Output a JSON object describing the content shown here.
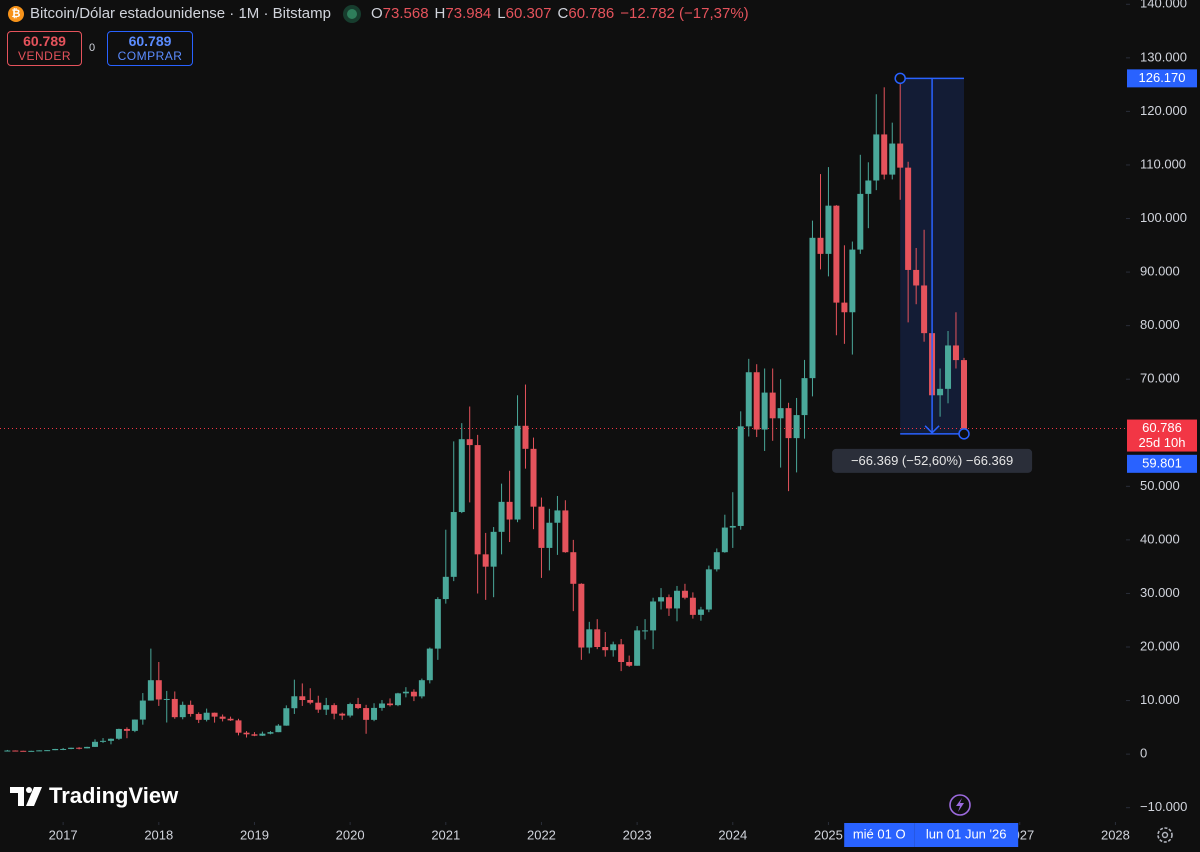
{
  "chart_data": {
    "type": "candlestick",
    "header": {
      "symbol": "Bitcoin/Dólar estadounidense · 1M · Bitstamp",
      "ohlc": [
        {
          "key": "O",
          "value": "73.568"
        },
        {
          "key": "H",
          "value": "73.984"
        },
        {
          "key": "L",
          "value": "60.307"
        },
        {
          "key": "C",
          "value": "60.786"
        }
      ],
      "change": "−12.782 (−17,37%)"
    },
    "trade": {
      "sell_price": "60.789",
      "sell_label": "VENDER",
      "spread": "0",
      "buy_price": "60.789",
      "buy_label": "COMPRAR"
    },
    "x": [
      2016.417,
      2016.5,
      2016.583,
      2016.667,
      2016.75,
      2016.833,
      2016.917,
      2017,
      2017.083,
      2017.167,
      2017.25,
      2017.333,
      2017.417,
      2017.5,
      2017.583,
      2017.667,
      2017.75,
      2017.833,
      2017.917,
      2018,
      2018.083,
      2018.167,
      2018.25,
      2018.333,
      2018.417,
      2018.5,
      2018.583,
      2018.667,
      2018.75,
      2018.833,
      2018.917,
      2019,
      2019.083,
      2019.167,
      2019.25,
      2019.333,
      2019.417,
      2019.5,
      2019.583,
      2019.667,
      2019.75,
      2019.833,
      2019.917,
      2020,
      2020.083,
      2020.167,
      2020.25,
      2020.333,
      2020.417,
      2020.5,
      2020.583,
      2020.667,
      2020.75,
      2020.833,
      2020.917,
      2021,
      2021.083,
      2021.167,
      2021.25,
      2021.333,
      2021.417,
      2021.5,
      2021.583,
      2021.667,
      2021.75,
      2021.833,
      2021.917,
      2022,
      2022.083,
      2022.167,
      2022.25,
      2022.333,
      2022.417,
      2022.5,
      2022.583,
      2022.667,
      2022.75,
      2022.833,
      2022.917,
      2023,
      2023.083,
      2023.167,
      2023.25,
      2023.333,
      2023.417,
      2023.5,
      2023.583,
      2023.667,
      2023.75,
      2023.833,
      2023.917,
      2024,
      2024.083,
      2024.167,
      2024.25,
      2024.333,
      2024.417,
      2024.5,
      2024.583,
      2024.667,
      2024.75,
      2024.833,
      2024.917,
      2025,
      2025.083,
      2025.167,
      2025.25,
      2025.333,
      2025.417,
      2025.5,
      2025.583,
      2025.667,
      2025.75,
      2025.833,
      2025.917,
      2026,
      2026.083,
      2026.167,
      2026.25,
      2026.333,
      2026.417
    ],
    "open": [
      530,
      670,
      620,
      575,
      610,
      700,
      740,
      960,
      965,
      1190,
      1080,
      1350,
      2300,
      2480,
      2870,
      4700,
      4340,
      6450,
      10000,
      13800,
      10200,
      10300,
      6900,
      9200,
      7500,
      6400,
      7730,
      7000,
      6600,
      6300,
      4000,
      3700,
      3440,
      3820,
      4100,
      5320,
      8570,
      10800,
      10100,
      9600,
      8300,
      9150,
      7550,
      7200,
      9350,
      8600,
      6400,
      8630,
      9450,
      9140,
      11350,
      11650,
      10780,
      13800,
      19700,
      28950,
      33100,
      45200,
      58800,
      57700,
      37300,
      35000,
      41500,
      47100,
      43800,
      61300,
      57000,
      46200,
      38500,
      43200,
      45500,
      37700,
      31800,
      19900,
      23300,
      20000,
      19400,
      20500,
      17200,
      16500,
      23100,
      23100,
      28500,
      29300,
      27200,
      30500,
      29200,
      26000,
      27000,
      34500,
      37700,
      42300,
      42600,
      61200,
      71300,
      60600,
      67500,
      62700,
      64600,
      59000,
      63300,
      70200,
      96400,
      93400,
      102400,
      84300,
      82500,
      94200,
      104600,
      107100,
      115700,
      108200,
      114000,
      109500,
      90400,
      87500,
      78600,
      67000,
      68200,
      76300,
      73568
    ],
    "high": [
      780,
      700,
      630,
      630,
      720,
      760,
      980,
      1150,
      1200,
      1300,
      1370,
      2760,
      3000,
      2920,
      4750,
      5000,
      6470,
      11400,
      19700,
      17200,
      11800,
      11700,
      9800,
      10000,
      7800,
      8500,
      7760,
      7400,
      7000,
      6600,
      4300,
      4100,
      4200,
      4300,
      5600,
      9100,
      13900,
      13200,
      12300,
      10900,
      10500,
      9500,
      7750,
      9600,
      10500,
      9200,
      9500,
      10100,
      10400,
      11450,
      12500,
      12100,
      14100,
      19900,
      29300,
      41900,
      58400,
      61800,
      64900,
      59600,
      41300,
      42400,
      50500,
      52900,
      67000,
      69000,
      59100,
      47900,
      45800,
      48200,
      47400,
      40000,
      31900,
      24700,
      25200,
      22800,
      21000,
      21500,
      18400,
      23900,
      25200,
      29200,
      31000,
      29800,
      31400,
      31800,
      30200,
      27500,
      35200,
      38400,
      44700,
      48900,
      64000,
      73800,
      72800,
      72000,
      72000,
      70000,
      65600,
      66500,
      73600,
      99600,
      108300,
      109600,
      102500,
      95000,
      95700,
      111900,
      110500,
      123200,
      124500,
      117900,
      126200,
      110600,
      94500,
      97900,
      79500,
      72000,
      79000,
      82500,
      73984
    ],
    "low": [
      520,
      600,
      530,
      570,
      605,
      690,
      740,
      750,
      920,
      890,
      1060,
      1340,
      2100,
      1830,
      2670,
      2970,
      4100,
      5500,
      10000,
      9000,
      5900,
      6600,
      6500,
      7000,
      5800,
      6100,
      5880,
      6100,
      6200,
      3500,
      3100,
      3350,
      3400,
      3700,
      4100,
      5300,
      7500,
      9000,
      9300,
      7700,
      7300,
      6500,
      6400,
      6850,
      8400,
      3800,
      6150,
      8100,
      8900,
      8950,
      10600,
      9900,
      10400,
      13200,
      17600,
      28100,
      32300,
      45000,
      47000,
      30000,
      28800,
      29300,
      37300,
      39600,
      43300,
      53300,
      42000,
      32900,
      34300,
      37200,
      37600,
      26700,
      17600,
      18800,
      19600,
      18200,
      18200,
      15500,
      16300,
      16500,
      21400,
      19600,
      27000,
      25800,
      24800,
      28900,
      25300,
      24900,
      26500,
      34100,
      37600,
      38500,
      41900,
      59300,
      59200,
      56600,
      58500,
      53500,
      49100,
      52600,
      58900,
      66800,
      90500,
      89200,
      78200,
      76600,
      74600,
      93400,
      98200,
      105300,
      107300,
      107300,
      103500,
      80600,
      84000,
      77000,
      60200,
      63000,
      65500,
      72000,
      60307
    ],
    "close": [
      670,
      620,
      575,
      610,
      700,
      740,
      960,
      965,
      1190,
      1080,
      1350,
      2300,
      2480,
      2870,
      4700,
      4340,
      6450,
      10000,
      13800,
      10200,
      10300,
      6900,
      9200,
      7500,
      6400,
      7730,
      7000,
      6600,
      6300,
      4000,
      3700,
      3440,
      3820,
      4100,
      5320,
      8570,
      10800,
      10100,
      9600,
      8300,
      9150,
      7550,
      7200,
      9350,
      8600,
      6400,
      8630,
      9450,
      9140,
      11350,
      11650,
      10780,
      13800,
      19700,
      28950,
      33100,
      45200,
      58800,
      57700,
      37300,
      35000,
      41500,
      47100,
      43800,
      61300,
      57000,
      46200,
      38500,
      43200,
      45500,
      37700,
      31800,
      19900,
      23300,
      20000,
      19400,
      20500,
      17200,
      16500,
      23100,
      23100,
      28500,
      29300,
      27200,
      30500,
      29200,
      26000,
      27000,
      34500,
      37700,
      42300,
      42600,
      61200,
      71300,
      60600,
      67500,
      62700,
      64600,
      59000,
      63300,
      70200,
      96400,
      93400,
      102400,
      84300,
      82500,
      94200,
      104600,
      107100,
      115700,
      108200,
      114000,
      109500,
      90400,
      87500,
      78600,
      67000,
      68200,
      76300,
      73568,
      60786
    ],
    "up_color": "#4aa89a",
    "down_color": "#e5535c",
    "xlim": [
      2016.34,
      2028.1
    ],
    "xticks": [
      2017,
      2018,
      2019,
      2020,
      2021,
      2022,
      2023,
      2024,
      2025,
      2027,
      2028
    ],
    "ylim": [
      -12300,
      140800
    ],
    "yticks": [
      {
        "value": -10000,
        "label": "−10.000"
      },
      0,
      {
        "value": 10000,
        "label": "10.000"
      },
      {
        "value": 20000,
        "label": "20.000"
      },
      {
        "value": 30000,
        "label": "30.000"
      },
      {
        "value": 40000,
        "label": "40.000"
      },
      {
        "value": 50000,
        "label": "50.000"
      },
      {
        "value": 70000,
        "label": "70.000"
      },
      {
        "value": 80000,
        "label": "80.000"
      },
      {
        "value": 90000,
        "label": "90.000"
      },
      {
        "value": 100000,
        "label": "100.000"
      },
      {
        "value": 110000,
        "label": "110.000"
      },
      {
        "value": 120000,
        "label": "120.000"
      },
      {
        "value": 130000,
        "label": "130.000"
      },
      {
        "value": 140000,
        "label": "140.000"
      }
    ],
    "grid": false,
    "last_price": {
      "value": 60786,
      "label": "60.786",
      "countdown": "25d 10h",
      "color": "#f23645"
    },
    "measure": {
      "x_start": 2025.75,
      "x_end": 2026.417,
      "high": 126170,
      "high_label": "126.170",
      "low": 59801,
      "low_label": "59.801",
      "text": "−66.369 (−52,60%) −66.369",
      "color": "#2962ff"
    },
    "crosshair_labels": [
      "mié 01 O",
      "lun 01 Jun '26"
    ],
    "brand": "TradingView"
  }
}
